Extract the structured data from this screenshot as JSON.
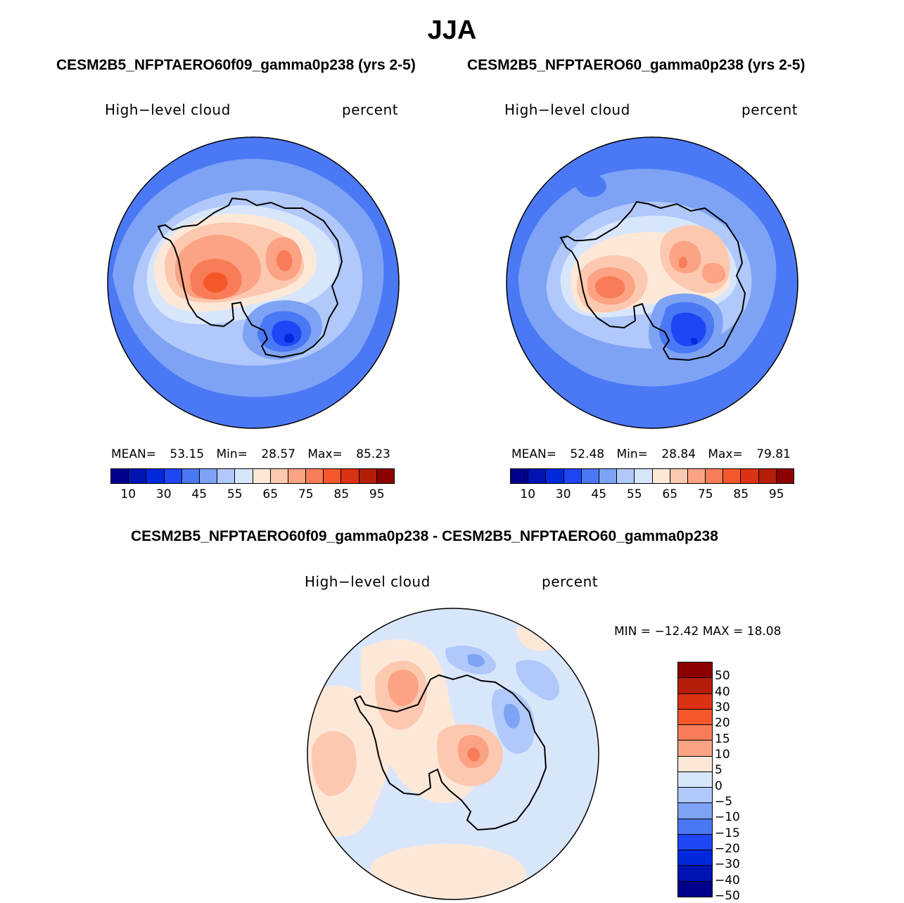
{
  "figure": {
    "title": "JJA"
  },
  "panels": [
    {
      "title": "CESM2B5_NFPTAERO60f09_gamma0p238 (yrs 2-5)",
      "variable": "High−level cloud",
      "units": "percent",
      "stats": {
        "mean_label": "MEAN=",
        "mean": "53.15",
        "min_label": "Min=",
        "min": "28.57",
        "max_label": "Max=",
        "max": "85.23"
      }
    },
    {
      "title": "CESM2B5_NFPTAERO60_gamma0p238 (yrs 2-5)",
      "variable": "High−level cloud",
      "units": "percent",
      "stats": {
        "mean_label": "MEAN=",
        "mean": "52.48",
        "min_label": "Min=",
        "min": "28.84",
        "max_label": "Max=",
        "max": "79.81"
      }
    },
    {
      "title": "CESM2B5_NFPTAERO60f09_gamma0p238 - CESM2B5_NFPTAERO60_gamma0p238",
      "variable": "High−level cloud",
      "units": "percent",
      "stats": {
        "text": "MIN = −12.42 MAX =   18.08"
      }
    }
  ],
  "colorbar_top": {
    "colors": [
      "#00008c",
      "#0014b4",
      "#0028dc",
      "#1e46f5",
      "#4b78f5",
      "#7ea3f5",
      "#b0c8fa",
      "#d8e6fc",
      "#fde8d8",
      "#fcc8b0",
      "#fba384",
      "#f97c58",
      "#f4582a",
      "#dc3214",
      "#b41e08",
      "#8c0000"
    ],
    "ticks": [
      "10",
      "30",
      "45",
      "55",
      "65",
      "75",
      "85",
      "95"
    ]
  },
  "colorbar_diff": {
    "colors": [
      "#8c0000",
      "#b41e08",
      "#dc3214",
      "#f4582a",
      "#f97c58",
      "#fba384",
      "#fde8d8",
      "#d8e6fc",
      "#b0c8fa",
      "#7ea3f5",
      "#4b78f5",
      "#1e46f5",
      "#0028dc",
      "#0014b4",
      "#00008c"
    ],
    "ticks": [
      "50",
      "40",
      "30",
      "20",
      "15",
      "10",
      "5",
      "0",
      "−5",
      "−10",
      "−15",
      "−20",
      "−30",
      "−40",
      "−50"
    ]
  }
}
